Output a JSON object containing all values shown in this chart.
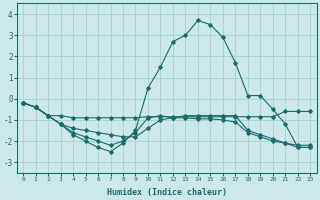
{
  "background_color": "#cce8e8",
  "grid_color": "#aad4d4",
  "line_color": "#1a6b6b",
  "xlim": [
    -0.5,
    23.5
  ],
  "ylim": [
    -3.5,
    4.5
  ],
  "yticks": [
    -3,
    -2,
    -1,
    0,
    1,
    2,
    3,
    4
  ],
  "xticks": [
    0,
    1,
    2,
    3,
    4,
    5,
    6,
    7,
    8,
    9,
    10,
    11,
    12,
    13,
    14,
    15,
    16,
    17,
    18,
    19,
    20,
    21,
    22,
    23
  ],
  "xlabel": "Humidex (Indice chaleur)",
  "lines": [
    {
      "x": [
        0,
        1,
        2,
        3,
        4,
        5,
        6,
        7,
        8,
        9,
        10,
        11,
        12,
        13,
        14,
        15,
        16,
        17,
        18,
        19,
        20,
        21,
        22,
        23
      ],
      "y": [
        -0.2,
        -0.4,
        -0.8,
        -0.8,
        -0.9,
        -0.9,
        -0.9,
        -0.9,
        -0.9,
        -0.9,
        -0.85,
        -0.85,
        -0.85,
        -0.85,
        -0.85,
        -0.85,
        -0.85,
        -0.85,
        -0.85,
        -0.85,
        -0.85,
        -0.6,
        -0.6,
        -0.6
      ]
    },
    {
      "x": [
        0,
        1,
        2,
        3,
        4,
        5,
        6,
        7,
        8,
        9,
        10,
        11,
        12,
        13,
        14,
        15,
        16,
        17,
        18,
        19,
        20,
        21,
        22,
        23
      ],
      "y": [
        -0.2,
        -0.4,
        -0.8,
        -1.2,
        -1.4,
        -1.5,
        -1.6,
        -1.7,
        -1.8,
        -1.8,
        -1.4,
        -1.0,
        -0.9,
        -0.8,
        -0.8,
        -0.8,
        -0.8,
        -0.8,
        -1.5,
        -1.7,
        -1.9,
        -2.1,
        -2.2,
        -2.2
      ]
    },
    {
      "x": [
        0,
        1,
        2,
        3,
        4,
        5,
        6,
        7,
        8,
        9,
        10,
        11,
        12,
        13,
        14,
        15,
        16,
        17,
        18,
        19,
        20,
        21,
        22,
        23
      ],
      "y": [
        -0.2,
        -0.4,
        -0.8,
        -1.2,
        -1.6,
        -1.8,
        -2.0,
        -2.2,
        -2.0,
        -1.6,
        -0.9,
        -0.8,
        -0.9,
        -0.9,
        -0.95,
        -0.95,
        -1.0,
        -1.1,
        -1.6,
        -1.8,
        -2.0,
        -2.1,
        -2.3,
        -2.3
      ]
    },
    {
      "x": [
        0,
        1,
        2,
        3,
        4,
        5,
        6,
        7,
        8,
        9,
        10,
        11,
        12,
        13,
        14,
        15,
        16,
        17,
        18,
        19,
        20,
        21,
        22,
        23
      ],
      "y": [
        -0.2,
        -0.4,
        -0.8,
        -1.2,
        -1.7,
        -2.0,
        -2.3,
        -2.5,
        -2.1,
        -1.5,
        0.5,
        1.5,
        2.7,
        3.0,
        3.7,
        3.5,
        2.9,
        1.7,
        0.15,
        0.15,
        -0.5,
        -1.2,
        -2.3,
        -2.3
      ]
    }
  ]
}
